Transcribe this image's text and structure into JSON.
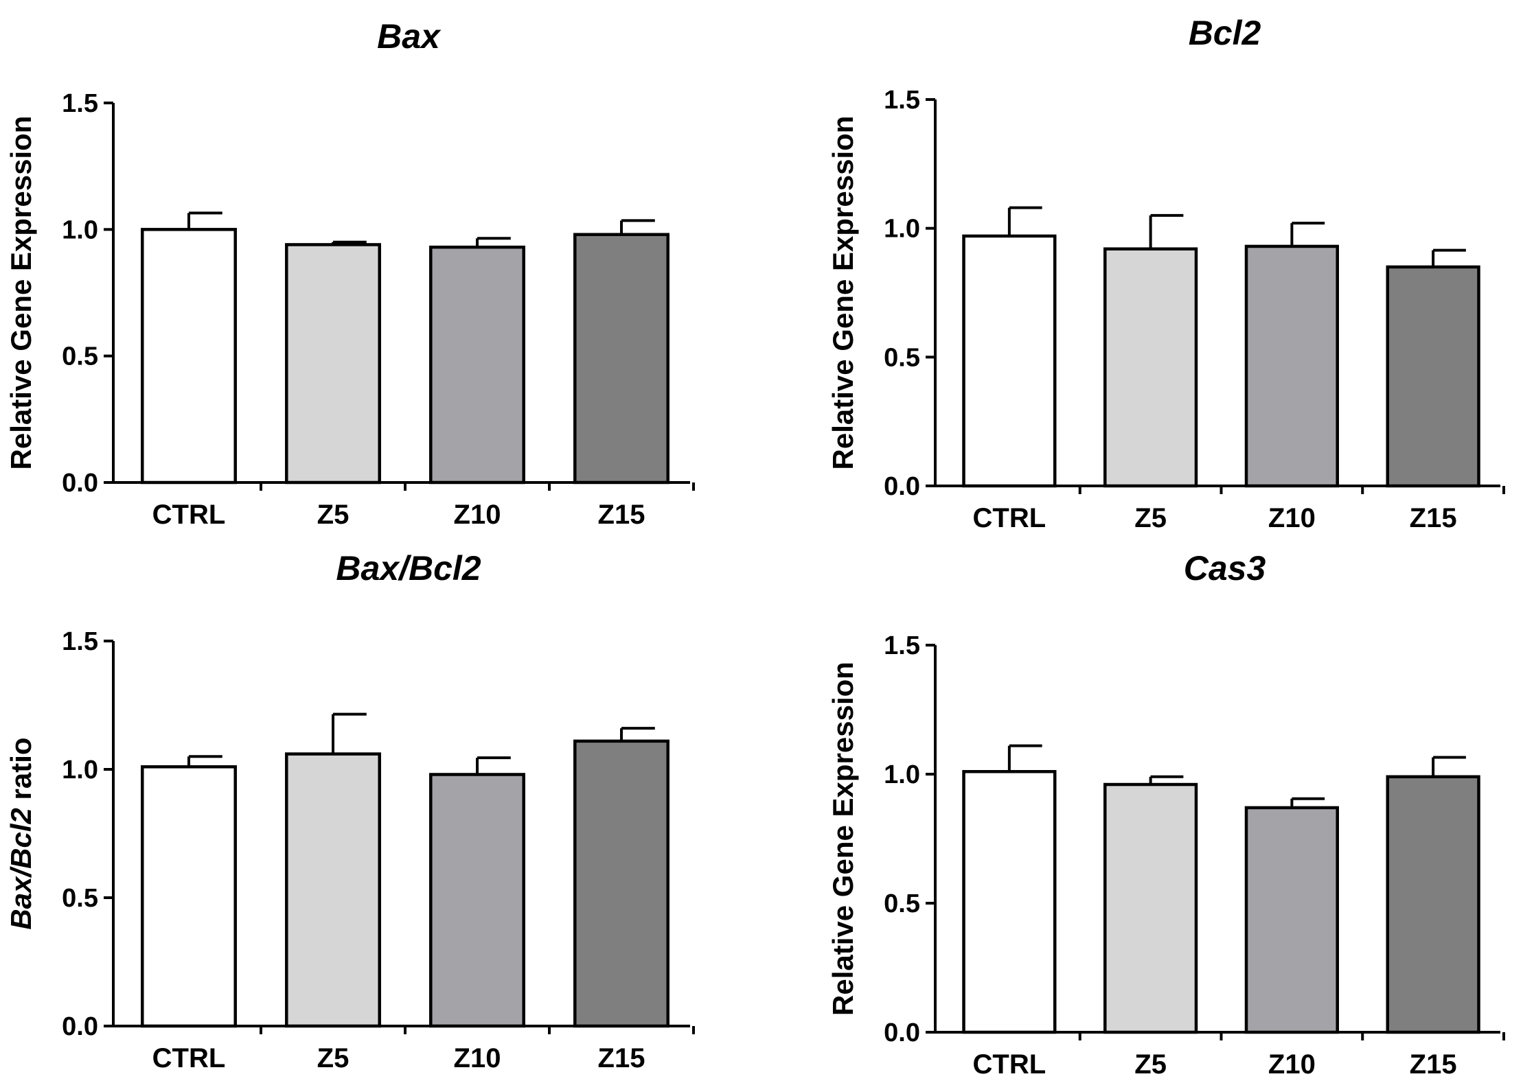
{
  "chart_data": [
    {
      "type": "bar",
      "title": "Bax",
      "ylabel": "Relative Gene Expression",
      "ylabel_italic_prefix": "",
      "ylim": [
        0,
        1.5
      ],
      "yticks": [
        "0.0",
        "0.5",
        "1.0",
        "1.5"
      ],
      "categories": [
        "CTRL",
        "Z5",
        "Z10",
        "Z15"
      ],
      "values": [
        1.0,
        0.94,
        0.93,
        0.98
      ],
      "errors": [
        0.065,
        0.01,
        0.035,
        0.055
      ],
      "colors": [
        "#ffffff",
        "#d6d6d6",
        "#a4a3a8",
        "#7f7f7f"
      ]
    },
    {
      "type": "bar",
      "title": "Bcl2",
      "ylabel": "Relative Gene Expression",
      "ylabel_italic_prefix": "",
      "ylim": [
        0,
        1.5
      ],
      "yticks": [
        "0.0",
        "0.5",
        "1.0",
        "1.5"
      ],
      "categories": [
        "CTRL",
        "Z5",
        "Z10",
        "Z15"
      ],
      "values": [
        0.97,
        0.92,
        0.93,
        0.85
      ],
      "errors": [
        0.11,
        0.13,
        0.09,
        0.065
      ],
      "colors": [
        "#ffffff",
        "#d6d6d6",
        "#a4a3a8",
        "#7f7f7f"
      ]
    },
    {
      "type": "bar",
      "title": "Bax/Bcl2",
      "ylabel": " ratio",
      "ylabel_italic_prefix": "Bax/Bcl2",
      "ylim": [
        0,
        1.5
      ],
      "yticks": [
        "0.0",
        "0.5",
        "1.0",
        "1.5"
      ],
      "categories": [
        "CTRL",
        "Z5",
        "Z10",
        "Z15"
      ],
      "values": [
        1.01,
        1.06,
        0.98,
        1.11
      ],
      "errors": [
        0.04,
        0.155,
        0.065,
        0.05
      ],
      "colors": [
        "#ffffff",
        "#d6d6d6",
        "#a4a3a8",
        "#7f7f7f"
      ]
    },
    {
      "type": "bar",
      "title": "Cas3",
      "ylabel": "Relative Gene Expression",
      "ylabel_italic_prefix": "",
      "ylim": [
        0,
        1.5
      ],
      "yticks": [
        "0.0",
        "0.5",
        "1.0",
        "1.5"
      ],
      "categories": [
        "CTRL",
        "Z5",
        "Z10",
        "Z15"
      ],
      "values": [
        1.01,
        0.96,
        0.87,
        0.99
      ],
      "errors": [
        0.1,
        0.03,
        0.035,
        0.075
      ],
      "colors": [
        "#ffffff",
        "#d6d6d6",
        "#a4a3a8",
        "#7f7f7f"
      ]
    }
  ]
}
